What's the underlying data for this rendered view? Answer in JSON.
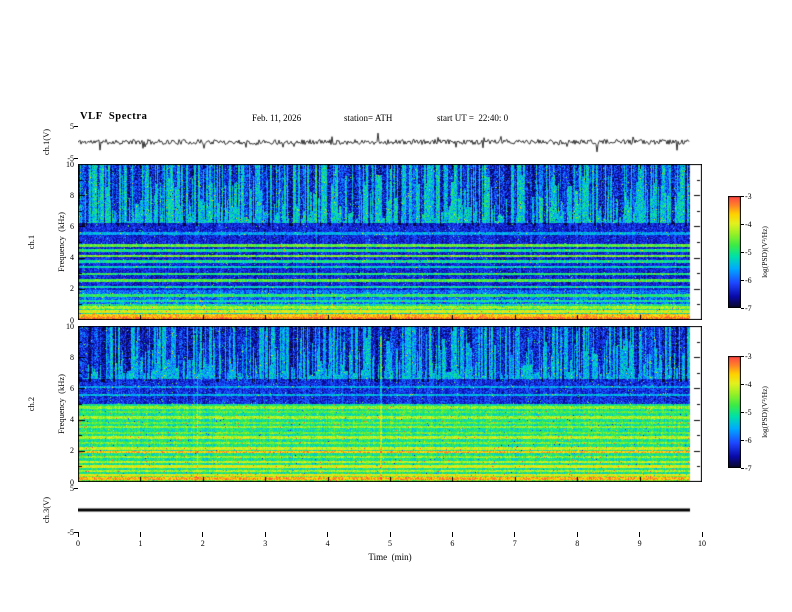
{
  "header": {
    "title": "VLF  Spectra",
    "date": "Feb. 11, 2026",
    "station": "station= ATH",
    "start_ut": "start UT =  22:40: 0"
  },
  "time_axis": {
    "label": "Time  (min)",
    "ticks": [
      "0",
      "1",
      "2",
      "3",
      "4",
      "5",
      "6",
      "7",
      "8",
      "9",
      "10"
    ],
    "range_min": [
      0,
      10
    ]
  },
  "panels": {
    "ch1_wave": {
      "ylabel": "ch.1(V)",
      "yticks": [
        "5",
        "-5"
      ],
      "ylim": [
        -5,
        5
      ]
    },
    "ch1_spec": {
      "ylabel_line1": "ch.1",
      "ylabel_line2": "Frequency  (kHz)",
      "yticks": [
        "10",
        "8",
        "6",
        "4",
        "2",
        "0"
      ],
      "ylim_khz": [
        0,
        10
      ]
    },
    "ch2_spec": {
      "ylabel_line1": "ch.2",
      "ylabel_line2": "Frequency  (kHz)",
      "yticks": [
        "10",
        "8",
        "6",
        "4",
        "2",
        "0"
      ],
      "ylim_khz": [
        0,
        10
      ]
    },
    "ch3_wave": {
      "ylabel": "ch.3(V)",
      "yticks": [
        "5",
        "-5"
      ],
      "ylim": [
        -5,
        5
      ]
    }
  },
  "colorbar": {
    "label": "log(PSD)(V²/Hz)",
    "ticks": [
      "-3",
      "-4",
      "-5",
      "-6",
      "-7"
    ],
    "range": [
      -7,
      -3
    ]
  },
  "colormap": {
    "name": "jet-like",
    "stops": [
      [
        0.0,
        8,
        8,
        40
      ],
      [
        0.1,
        10,
        10,
        170
      ],
      [
        0.22,
        30,
        70,
        255
      ],
      [
        0.35,
        0,
        170,
        255
      ],
      [
        0.46,
        0,
        225,
        170
      ],
      [
        0.56,
        60,
        235,
        70
      ],
      [
        0.66,
        150,
        240,
        40
      ],
      [
        0.76,
        230,
        240,
        30
      ],
      [
        0.84,
        255,
        210,
        0
      ],
      [
        0.92,
        255,
        130,
        40
      ],
      [
        1.0,
        255,
        70,
        70
      ]
    ]
  },
  "chart_data": [
    {
      "type": "line",
      "name": "ch1_waveform",
      "ylabel": "ch.1(V)",
      "ylim": [
        -5,
        5
      ],
      "x_range_min": [
        0,
        9.8
      ],
      "seed": 11,
      "noise_amp_v": 0.8,
      "spike_rate": 0.03,
      "spike_amp_v": 2.2,
      "description": "broadband noise centred on 0 V with sporadic impulsive spikes"
    },
    {
      "type": "heatmap",
      "name": "ch1_spectrogram",
      "ylabel": "ch.1 Frequency (kHz)",
      "ylim_khz": [
        0,
        10
      ],
      "zlim_log_psd": [
        -7,
        -3
      ],
      "x_range_min": [
        0,
        9.8
      ],
      "seed": 42,
      "regions": [
        {
          "f_khz": [
            6.2,
            10.0
          ],
          "base": -5.35,
          "noise": 0.55
        },
        {
          "f_khz": [
            1.9,
            6.2
          ],
          "base": -6.35,
          "noise": 0.35
        },
        {
          "f_khz": [
            1.0,
            1.9
          ],
          "base": -5.9,
          "noise": 0.5
        },
        {
          "f_khz": [
            0.0,
            1.0
          ],
          "base": -5.1,
          "noise": 0.5
        }
      ],
      "vertical_streaks": {
        "f_reach_khz": 6.0,
        "depth": -1.5,
        "column_rate": 0.7
      },
      "bands_khz": [
        {
          "f": 5.55,
          "w": 0.07,
          "v": -5.6
        },
        {
          "f": 4.75,
          "w": 0.09,
          "v": -4.6
        },
        {
          "f": 4.45,
          "w": 0.07,
          "v": -5.0
        },
        {
          "f": 4.1,
          "w": 0.09,
          "v": -4.5
        },
        {
          "f": 3.75,
          "w": 0.07,
          "v": -5.1
        },
        {
          "f": 3.4,
          "w": 0.07,
          "v": -5.3
        },
        {
          "f": 2.95,
          "w": 0.09,
          "v": -4.9
        },
        {
          "f": 2.55,
          "w": 0.11,
          "v": -4.7
        },
        {
          "f": 2.1,
          "w": 0.07,
          "v": -5.2
        },
        {
          "f": 1.55,
          "w": 0.09,
          "v": -4.9
        },
        {
          "f": 1.2,
          "w": 0.07,
          "v": -5.1
        },
        {
          "f": 0.8,
          "w": 0.11,
          "v": -4.3
        },
        {
          "f": 0.55,
          "w": 0.09,
          "v": -4.0
        },
        {
          "f": 0.3,
          "w": 0.09,
          "v": -3.6
        },
        {
          "f": 0.1,
          "w": 0.08,
          "v": -3.3
        }
      ]
    },
    {
      "type": "heatmap",
      "name": "ch2_spectrogram",
      "ylabel": "ch.2 Frequency (kHz)",
      "ylim_khz": [
        0,
        10
      ],
      "zlim_log_psd": [
        -7,
        -3
      ],
      "x_range_min": [
        0,
        9.8
      ],
      "seed": 77,
      "regions": [
        {
          "f_khz": [
            6.6,
            10.0
          ],
          "base": -5.5,
          "noise": 0.5
        },
        {
          "f_khz": [
            5.0,
            6.6
          ],
          "base": -6.3,
          "noise": 0.4
        },
        {
          "f_khz": [
            0.5,
            5.0
          ],
          "base": -5.05,
          "noise": 0.4
        },
        {
          "f_khz": [
            0.0,
            0.5
          ],
          "base": -4.5,
          "noise": 0.4
        }
      ],
      "vertical_streaks": {
        "f_reach_khz": 6.4,
        "depth": -1.4,
        "column_rate": 0.7
      },
      "bands_khz": [
        {
          "f": 6.1,
          "w": 0.07,
          "v": -5.6
        },
        {
          "f": 5.6,
          "w": 0.07,
          "v": -5.5
        },
        {
          "f": 4.8,
          "w": 0.09,
          "v": -4.4
        },
        {
          "f": 4.5,
          "w": 0.07,
          "v": -4.7
        },
        {
          "f": 4.15,
          "w": 0.09,
          "v": -4.3
        },
        {
          "f": 3.8,
          "w": 0.07,
          "v": -4.6
        },
        {
          "f": 3.5,
          "w": 0.07,
          "v": -4.4
        },
        {
          "f": 3.15,
          "w": 0.07,
          "v": -4.6
        },
        {
          "f": 2.85,
          "w": 0.09,
          "v": -4.2
        },
        {
          "f": 2.5,
          "w": 0.07,
          "v": -4.5
        },
        {
          "f": 2.15,
          "w": 0.09,
          "v": -4.1
        },
        {
          "f": 1.95,
          "w": 0.06,
          "v": -3.6
        },
        {
          "f": 1.6,
          "w": 0.07,
          "v": -4.4
        },
        {
          "f": 1.3,
          "w": 0.07,
          "v": -4.2
        },
        {
          "f": 1.0,
          "w": 0.09,
          "v": -4.0
        },
        {
          "f": 0.7,
          "w": 0.07,
          "v": -4.3
        },
        {
          "f": 0.45,
          "w": 0.07,
          "v": -3.9
        },
        {
          "f": 0.2,
          "w": 0.09,
          "v": -3.5
        }
      ]
    },
    {
      "type": "line",
      "name": "ch3_waveform",
      "ylabel": "ch.3(V)",
      "ylim": [
        -5,
        5
      ],
      "x_range_min": [
        0,
        9.8
      ],
      "constant_value_v": 0,
      "description": "flat trace at 0 V (no signal)"
    }
  ]
}
